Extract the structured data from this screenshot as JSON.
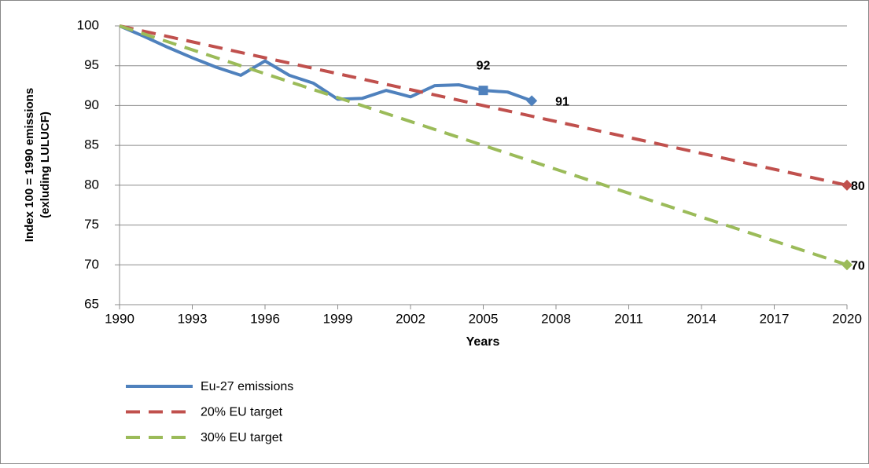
{
  "chart_data": {
    "type": "line",
    "ylabel": [
      "Index 100 = 1990 emissions",
      "(exluding LULUCF)"
    ],
    "xlabel": "Years",
    "xlim": [
      1990,
      2020
    ],
    "xticks": [
      1990,
      1993,
      1996,
      1999,
      2002,
      2005,
      2008,
      2011,
      2014,
      2017,
      2020
    ],
    "ylim": [
      65,
      100
    ],
    "yticks": [
      65,
      70,
      75,
      80,
      85,
      90,
      95,
      100
    ],
    "grid": true,
    "legend": "bottom-left",
    "series": [
      {
        "name": "Eu-27 emissions",
        "color": "#4f81bd",
        "dash": false,
        "x": [
          1990,
          1991,
          1992,
          1993,
          1994,
          1995,
          1996,
          1997,
          1998,
          1999,
          2000,
          2001,
          2002,
          2003,
          2004,
          2005,
          2006,
          2007
        ],
        "values": [
          100,
          98.7,
          97.3,
          96,
          94.8,
          93.8,
          95.6,
          93.8,
          92.8,
          90.8,
          90.9,
          91.9,
          91.1,
          92.5,
          92.6,
          91.9,
          91.7,
          90.6
        ],
        "value_labels": [
          null,
          null,
          null,
          null,
          null,
          null,
          null,
          null,
          null,
          null,
          null,
          null,
          null,
          null,
          null,
          "92",
          null,
          "91"
        ]
      },
      {
        "name": "20% EU target",
        "color": "#c0504d",
        "dash": true,
        "x": [
          1990,
          2020
        ],
        "values": [
          100,
          80
        ],
        "value_labels": [
          null,
          "80"
        ]
      },
      {
        "name": "30% EU target",
        "color": "#9bbb59",
        "dash": true,
        "x": [
          1990,
          2020
        ],
        "values": [
          100,
          70
        ],
        "value_labels": [
          null,
          "70"
        ]
      }
    ]
  }
}
